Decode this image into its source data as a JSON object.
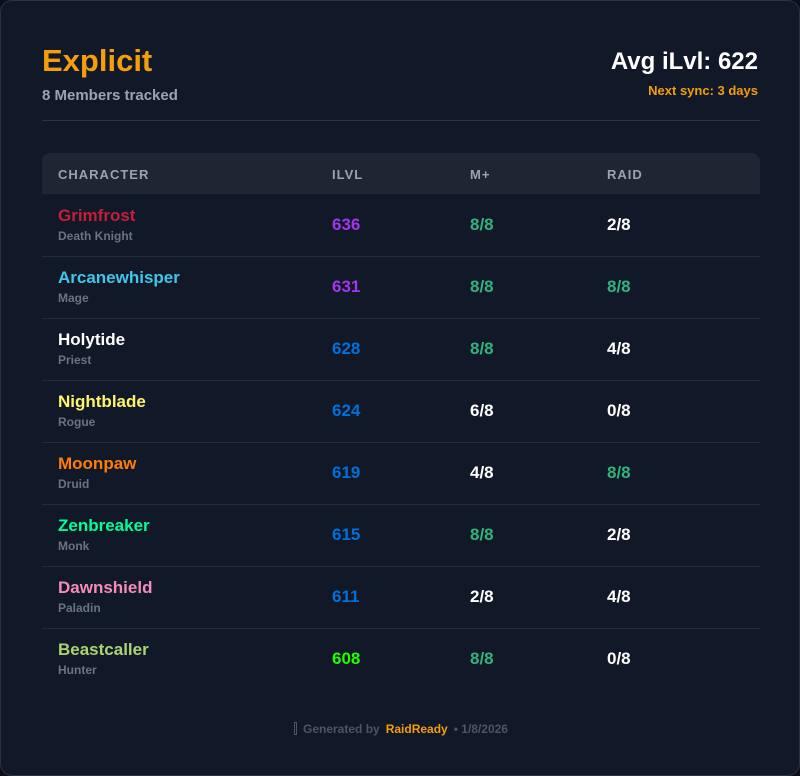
{
  "header": {
    "title": "Explicit",
    "subtitle": "8 Members tracked",
    "avg": "Avg iLvl: 622",
    "sync": "Next sync: 3 days"
  },
  "table": {
    "columns": [
      "CHARACTER",
      "ILVL",
      "M+",
      "RAID"
    ],
    "rows": [
      {
        "name": "Grimfrost",
        "class": "Death Knight",
        "color": "#c41e3a",
        "ilvl": 636,
        "ilvl_color": "#a335ee",
        "mplus": "8/8",
        "mplus_color": "#34b27b",
        "raid": "2/8",
        "raid_color": "#ffffff"
      },
      {
        "name": "Arcanewhisper",
        "class": "Mage",
        "color": "#3fc7eb",
        "ilvl": 631,
        "ilvl_color": "#a335ee",
        "mplus": "8/8",
        "mplus_color": "#34b27b",
        "raid": "8/8",
        "raid_color": "#34b27b"
      },
      {
        "name": "Holytide",
        "class": "Priest",
        "color": "#ffffff",
        "ilvl": 628,
        "ilvl_color": "#0070dd",
        "mplus": "8/8",
        "mplus_color": "#34b27b",
        "raid": "4/8",
        "raid_color": "#ffffff"
      },
      {
        "name": "Nightblade",
        "class": "Rogue",
        "color": "#fff468",
        "ilvl": 624,
        "ilvl_color": "#0070dd",
        "mplus": "6/8",
        "mplus_color": "#ffffff",
        "raid": "0/8",
        "raid_color": "#ffffff"
      },
      {
        "name": "Moonpaw",
        "class": "Druid",
        "color": "#ff7c0a",
        "ilvl": 619,
        "ilvl_color": "#0070dd",
        "mplus": "4/8",
        "mplus_color": "#ffffff",
        "raid": "8/8",
        "raid_color": "#34b27b"
      },
      {
        "name": "Zenbreaker",
        "class": "Monk",
        "color": "#00ff98",
        "ilvl": 615,
        "ilvl_color": "#0070dd",
        "mplus": "8/8",
        "mplus_color": "#34b27b",
        "raid": "2/8",
        "raid_color": "#ffffff"
      },
      {
        "name": "Dawnshield",
        "class": "Paladin",
        "color": "#f48cba",
        "ilvl": 611,
        "ilvl_color": "#0070dd",
        "mplus": "2/8",
        "mplus_color": "#ffffff",
        "raid": "4/8",
        "raid_color": "#ffffff"
      },
      {
        "name": "Beastcaller",
        "class": "Hunter",
        "color": "#aad372",
        "ilvl": 608,
        "ilvl_color": "#1eff00",
        "mplus": "8/8",
        "mplus_color": "#34b27b",
        "raid": "0/8",
        "raid_color": "#ffffff"
      }
    ]
  },
  "footer": {
    "label": "Generated by",
    "brand": "RaidReady",
    "date": "• 1/8/2026"
  }
}
